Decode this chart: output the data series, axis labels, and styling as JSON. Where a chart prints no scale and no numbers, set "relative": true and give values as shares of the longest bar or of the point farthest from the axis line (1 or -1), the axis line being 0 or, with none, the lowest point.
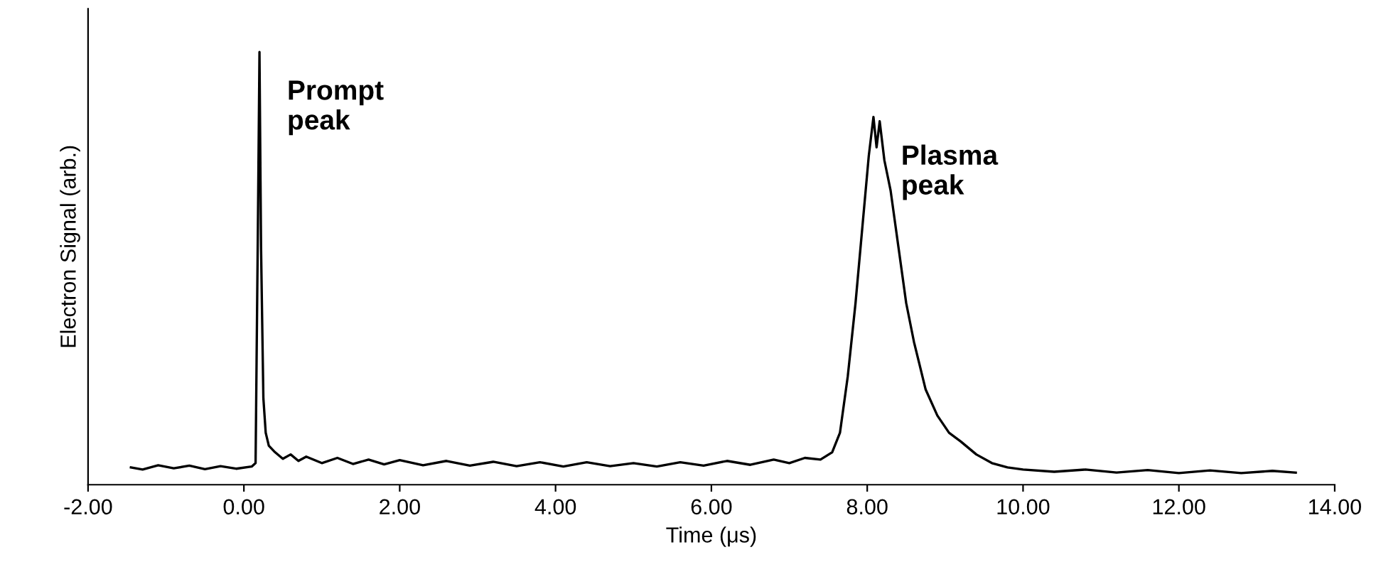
{
  "chart_data": {
    "type": "line",
    "relative": true,
    "xlabel": "Time (μs)",
    "ylabel": "Electron Signal (arb.)",
    "xlim": [
      -2,
      14
    ],
    "xticks": [
      {
        "value": -2,
        "label": "-2.00"
      },
      {
        "value": 0,
        "label": "0.00"
      },
      {
        "value": 2,
        "label": "2.00"
      },
      {
        "value": 4,
        "label": "4.00"
      },
      {
        "value": 6,
        "label": "6.00"
      },
      {
        "value": 8,
        "label": "8.00"
      },
      {
        "value": 10,
        "label": "10.00"
      },
      {
        "value": 12,
        "label": "12.00"
      },
      {
        "value": 14,
        "label": "14.00"
      }
    ],
    "tick_labels": "x",
    "grid": false,
    "legend": false,
    "annotations": [
      {
        "text": "Prompt\npeak",
        "x": 0.2,
        "y": 1.0
      },
      {
        "text": "Plasma\npeak",
        "x": 8.08,
        "y": 0.85
      }
    ],
    "series": [
      {
        "color": "#000000",
        "x": [
          -1.45,
          -1.3,
          -1.1,
          -0.9,
          -0.7,
          -0.5,
          -0.3,
          -0.1,
          0.1,
          0.15,
          0.18,
          0.2,
          0.22,
          0.25,
          0.28,
          0.32,
          0.4,
          0.5,
          0.6,
          0.7,
          0.8,
          1.0,
          1.2,
          1.4,
          1.6,
          1.8,
          2.0,
          2.3,
          2.6,
          2.9,
          3.2,
          3.5,
          3.8,
          4.1,
          4.4,
          4.7,
          5.0,
          5.3,
          5.6,
          5.9,
          6.2,
          6.5,
          6.8,
          7.0,
          7.2,
          7.4,
          7.55,
          7.65,
          7.75,
          7.85,
          7.95,
          8.02,
          8.08,
          8.12,
          8.16,
          8.22,
          8.3,
          8.4,
          8.5,
          8.6,
          8.75,
          8.9,
          9.05,
          9.2,
          9.4,
          9.6,
          9.8,
          10.0,
          10.4,
          10.8,
          11.2,
          11.6,
          12.0,
          12.4,
          12.8,
          13.2,
          13.5
        ],
        "values": [
          0.04,
          0.035,
          0.045,
          0.038,
          0.044,
          0.036,
          0.043,
          0.037,
          0.042,
          0.05,
          0.6,
          1.0,
          0.55,
          0.2,
          0.12,
          0.09,
          0.075,
          0.06,
          0.07,
          0.055,
          0.065,
          0.05,
          0.062,
          0.048,
          0.058,
          0.047,
          0.057,
          0.045,
          0.055,
          0.044,
          0.053,
          0.043,
          0.052,
          0.042,
          0.052,
          0.043,
          0.05,
          0.042,
          0.052,
          0.044,
          0.055,
          0.046,
          0.058,
          0.05,
          0.062,
          0.058,
          0.075,
          0.12,
          0.25,
          0.42,
          0.62,
          0.76,
          0.85,
          0.78,
          0.84,
          0.75,
          0.68,
          0.55,
          0.42,
          0.33,
          0.22,
          0.16,
          0.12,
          0.1,
          0.07,
          0.05,
          0.04,
          0.035,
          0.03,
          0.035,
          0.028,
          0.034,
          0.027,
          0.033,
          0.027,
          0.032,
          0.028
        ]
      }
    ]
  }
}
